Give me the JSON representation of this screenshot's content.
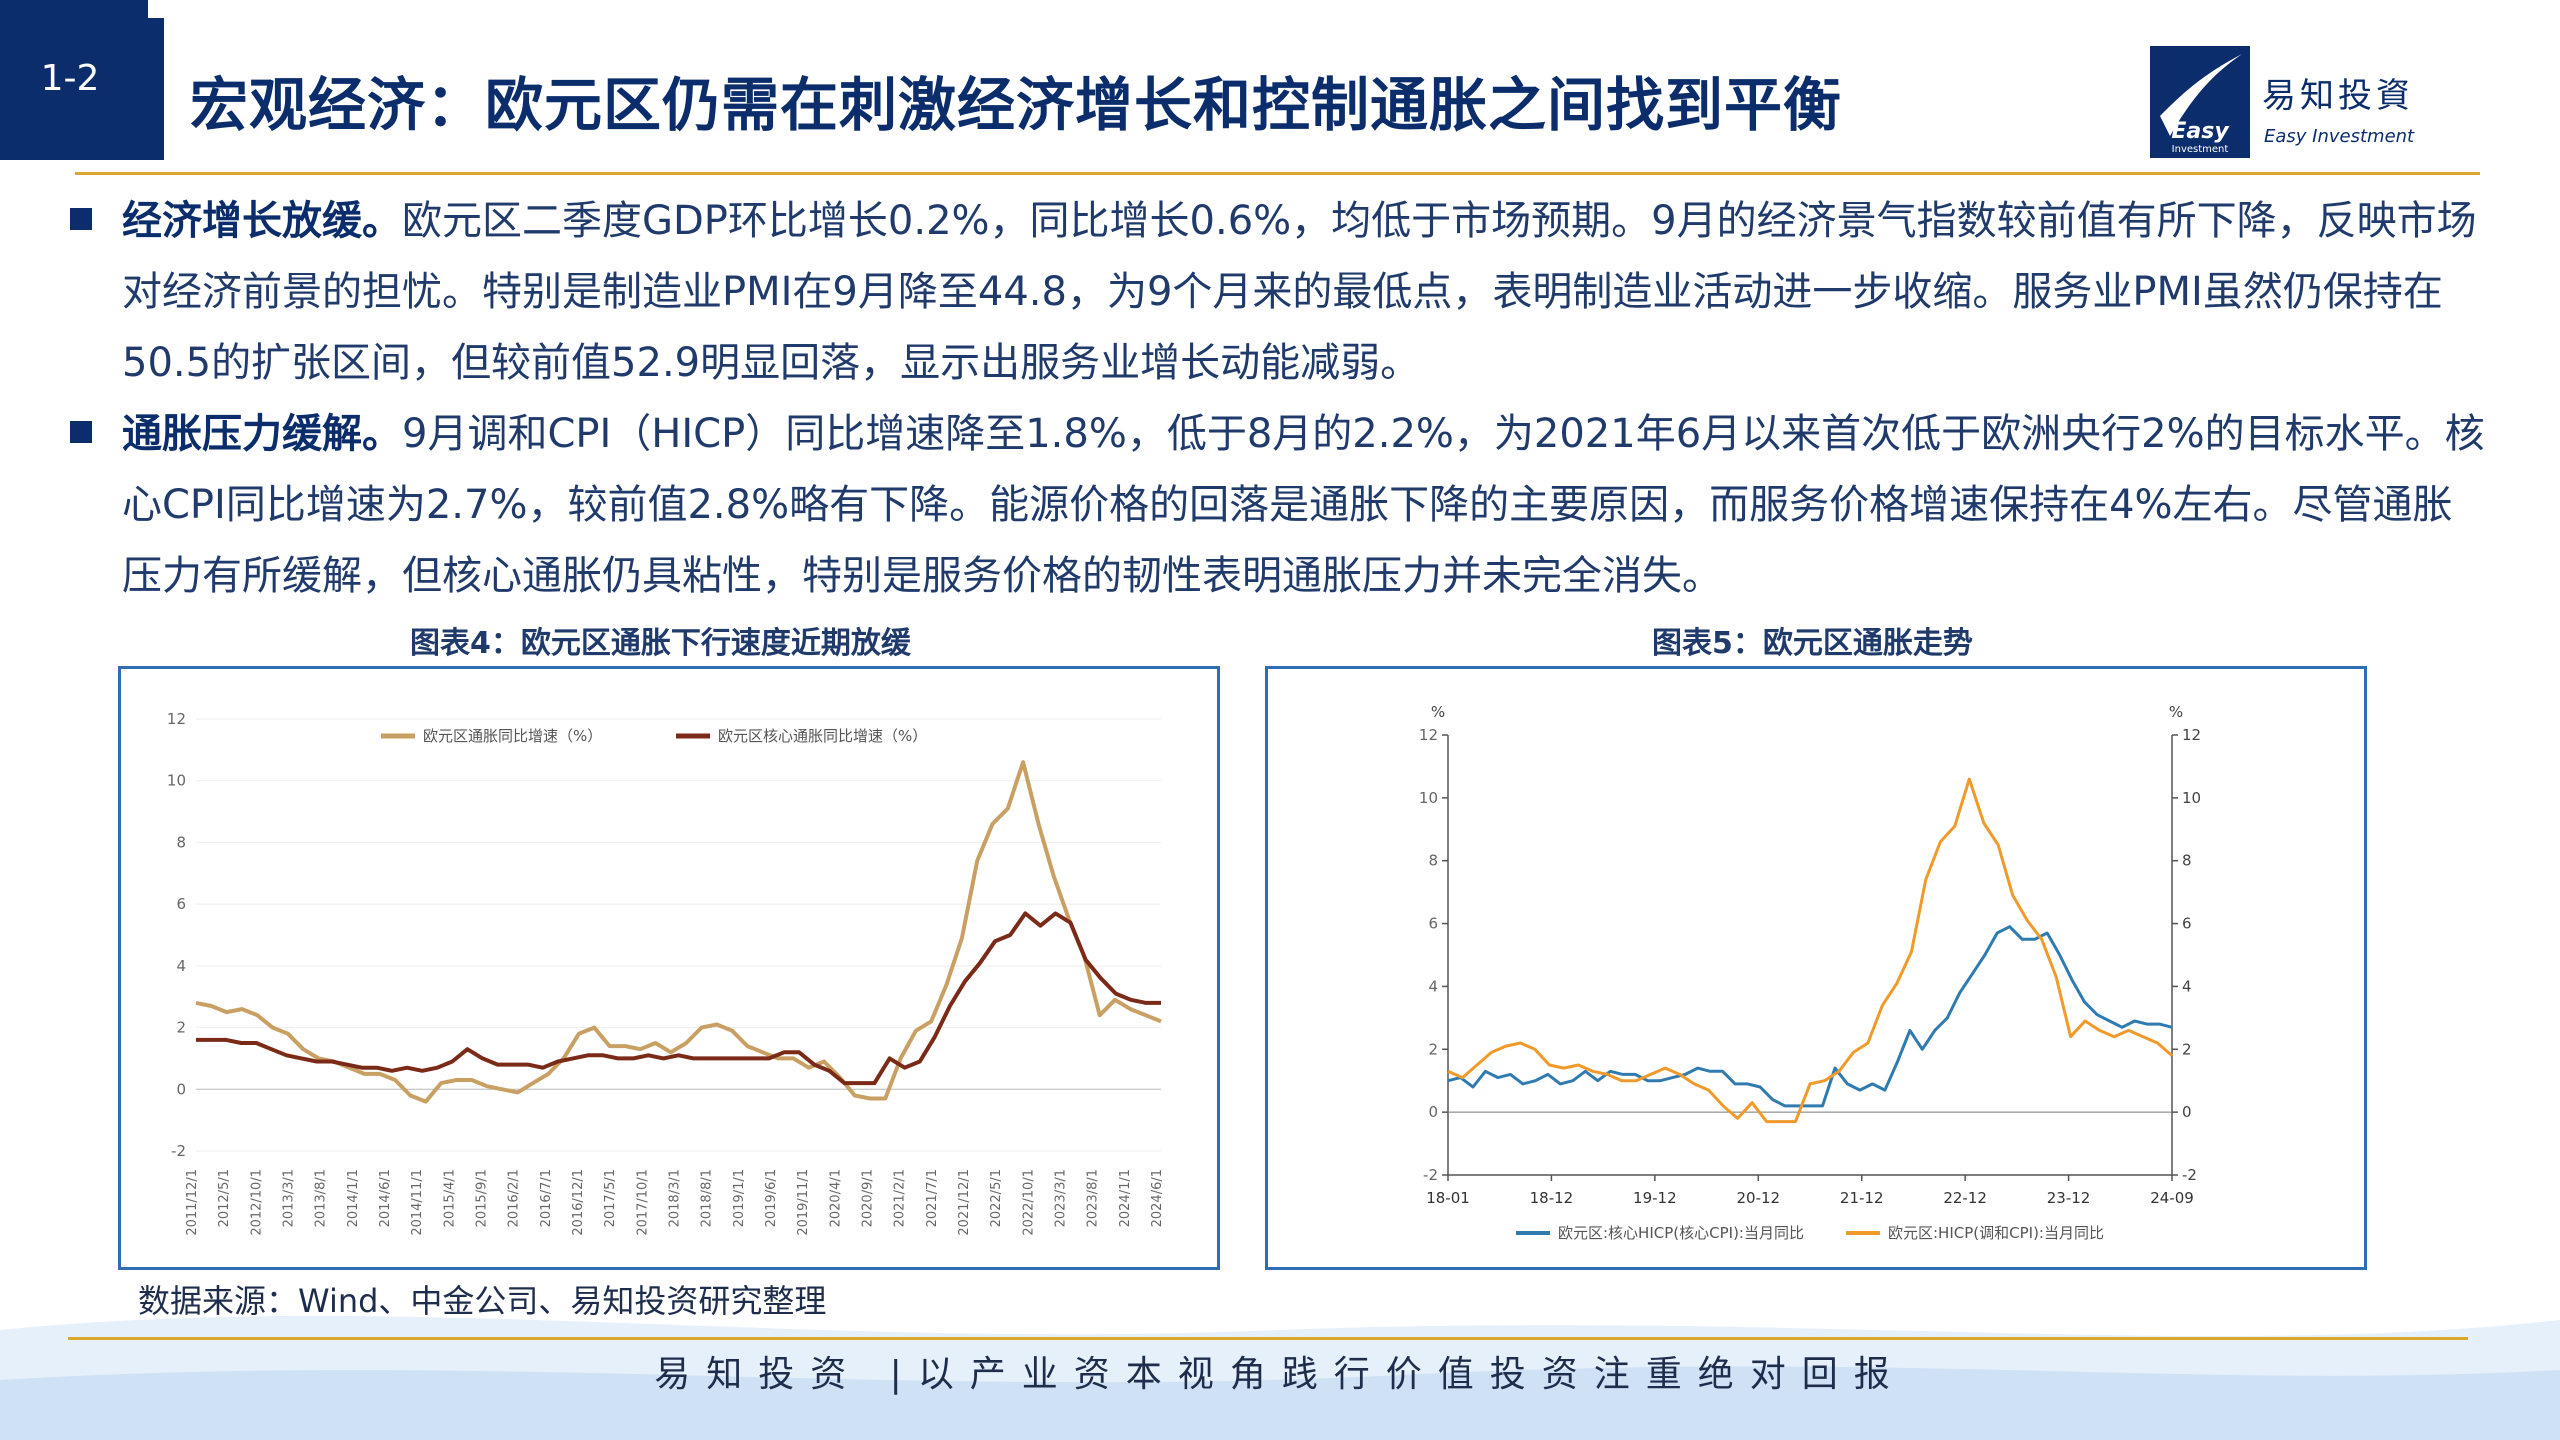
{
  "header": {
    "badge": "1-2",
    "title": "宏观经济：欧元区仍需在刺激经济增长和控制通胀之间找到平衡",
    "logo_cn": "易知投資",
    "logo_en": "Easy Investment",
    "logo_mark": "Easy Investment"
  },
  "bullets": [
    {
      "lead": "经济增长放缓。",
      "text": "欧元区二季度GDP环比增长0.2%，同比增长0.6%，均低于市场预期。9月的经济景气指数较前值有所下降，反映市场对经济前景的担忧。特别是制造业PMI在9月降至44.8，为9个月来的最低点，表明制造业活动进一步收缩。服务业PMI虽然仍保持在50.5的扩张区间，但较前值52.9明显回落，显示出服务业增长动能减弱。"
    },
    {
      "lead": "通胀压力缓解。",
      "text": "9月调和CPI（HICP）同比增速降至1.8%，低于8月的2.2%，为2021年6月以来首次低于欧洲央行2%的目标水平。核心CPI同比增速为2.7%，较前值2.8%略有下降。能源价格的回落是通胀下降的主要原因，而服务价格增速保持在4%左右。尽管通胀压力有所缓解，但核心通胀仍具粘性，特别是服务价格的韧性表明通胀压力并未完全消失。"
    }
  ],
  "chart_captions": [
    "图表4：欧元区通胀下行速度近期放缓",
    "图表5：欧元区通胀走势"
  ],
  "source": "数据来源：Wind、中金公司、易知投资研究整理",
  "footer": "易知投资 |以产业资本视角践行价值投资注重绝对回报",
  "colors": {
    "navy": "#0b2d6b",
    "gold": "#d9a62e",
    "tan": "#c9a063",
    "maroon": "#7a2a17",
    "blue": "#2f7bb0",
    "orange": "#ef9a2a"
  },
  "chart_data": [
    {
      "type": "line",
      "ylim": [
        -2,
        12
      ],
      "yticks": [
        "12",
        "10",
        "8",
        "6",
        "4",
        "2",
        "0",
        "-2"
      ],
      "xticks": [
        "2011/12/1",
        "2012/5/1",
        "2012/10/1",
        "2013/3/1",
        "2013/8/1",
        "2014/1/1",
        "2014/6/1",
        "2014/11/1",
        "2015/4/1",
        "2015/9/1",
        "2016/2/1",
        "2016/7/1",
        "2016/12/1",
        "2017/5/1",
        "2017/10/1",
        "2018/3/1",
        "2018/8/1",
        "2019/1/1",
        "2019/6/1",
        "2019/11/1",
        "2020/4/1",
        "2020/9/1",
        "2021/2/1",
        "2021/7/1",
        "2021/12/1",
        "2022/5/1",
        "2022/10/1",
        "2023/3/1",
        "2023/8/1",
        "2024/1/1",
        "2024/6/1"
      ],
      "series": [
        {
          "name": "欧元区通胀同比增速（%）",
          "color": "#c9a063",
          "values": [
            2.8,
            2.7,
            2.5,
            2.6,
            2.4,
            2.0,
            1.8,
            1.3,
            1.0,
            0.9,
            0.7,
            0.5,
            0.5,
            0.3,
            -0.2,
            -0.4,
            0.2,
            0.3,
            0.3,
            0.1,
            0.0,
            -0.1,
            0.2,
            0.5,
            1.0,
            1.8,
            2.0,
            1.4,
            1.4,
            1.3,
            1.5,
            1.2,
            1.5,
            2.0,
            2.1,
            1.9,
            1.4,
            1.2,
            1.0,
            1.0,
            0.7,
            0.9,
            0.4,
            -0.2,
            -0.3,
            -0.3,
            1.0,
            1.9,
            2.2,
            3.4,
            4.9,
            7.4,
            8.6,
            9.1,
            10.6,
            8.6,
            6.9,
            5.5,
            4.3,
            2.4,
            2.9,
            2.6,
            2.4,
            2.2
          ]
        },
        {
          "name": "欧元区核心通胀同比增速（%）",
          "color": "#7a2a17",
          "values": [
            1.6,
            1.6,
            1.6,
            1.5,
            1.5,
            1.3,
            1.1,
            1.0,
            0.9,
            0.9,
            0.8,
            0.7,
            0.7,
            0.6,
            0.7,
            0.6,
            0.7,
            0.9,
            1.3,
            1.0,
            0.8,
            0.8,
            0.8,
            0.7,
            0.9,
            1.0,
            1.1,
            1.1,
            1.0,
            1.0,
            1.1,
            1.0,
            1.1,
            1.0,
            1.0,
            1.0,
            1.0,
            1.0,
            1.0,
            1.2,
            1.2,
            0.8,
            0.6,
            0.2,
            0.2,
            0.2,
            1.0,
            0.7,
            0.9,
            1.7,
            2.7,
            3.5,
            4.1,
            4.8,
            5.0,
            5.7,
            5.3,
            5.7,
            5.4,
            4.2,
            3.6,
            3.1,
            2.9,
            2.8,
            2.8
          ]
        }
      ]
    },
    {
      "type": "line",
      "ylabel_left": "%",
      "ylabel_right": "%",
      "ylim": [
        -2,
        12
      ],
      "yticks": [
        "12",
        "10",
        "8",
        "6",
        "4",
        "2",
        "0",
        "-2"
      ],
      "xticks": [
        "18-01",
        "18-12",
        "19-12",
        "20-12",
        "21-12",
        "22-12",
        "23-12",
        "24-09"
      ],
      "series": [
        {
          "name": "欧元区:核心HICP(核心CPI):当月同比",
          "color": "#2f7bb0",
          "values": [
            1.0,
            1.1,
            0.8,
            1.3,
            1.1,
            1.2,
            0.9,
            1.0,
            1.2,
            0.9,
            1.0,
            1.3,
            1.0,
            1.3,
            1.2,
            1.2,
            1.0,
            1.0,
            1.1,
            1.2,
            1.4,
            1.3,
            1.3,
            0.9,
            0.9,
            0.8,
            0.4,
            0.2,
            0.2,
            0.2,
            0.2,
            1.4,
            0.9,
            0.7,
            0.9,
            0.7,
            1.6,
            2.6,
            2.0,
            2.6,
            3.0,
            3.8,
            4.4,
            5.0,
            5.7,
            5.9,
            5.5,
            5.5,
            5.7,
            5.0,
            4.2,
            3.5,
            3.1,
            2.9,
            2.7,
            2.9,
            2.8,
            2.8,
            2.7
          ]
        },
        {
          "name": "欧元区:HICP(调和CPI):当月同比",
          "color": "#ef9a2a",
          "values": [
            1.3,
            1.1,
            1.5,
            1.9,
            2.1,
            2.2,
            2.0,
            1.5,
            1.4,
            1.5,
            1.3,
            1.2,
            1.0,
            1.0,
            1.2,
            1.4,
            1.2,
            0.9,
            0.7,
            0.2,
            -0.2,
            0.3,
            -0.3,
            -0.3,
            -0.3,
            0.9,
            1.0,
            1.3,
            1.9,
            2.2,
            3.4,
            4.1,
            5.1,
            7.4,
            8.6,
            9.1,
            10.6,
            9.2,
            8.5,
            6.9,
            6.1,
            5.5,
            4.3,
            2.4,
            2.9,
            2.6,
            2.4,
            2.6,
            2.4,
            2.2,
            1.8
          ]
        }
      ]
    }
  ]
}
